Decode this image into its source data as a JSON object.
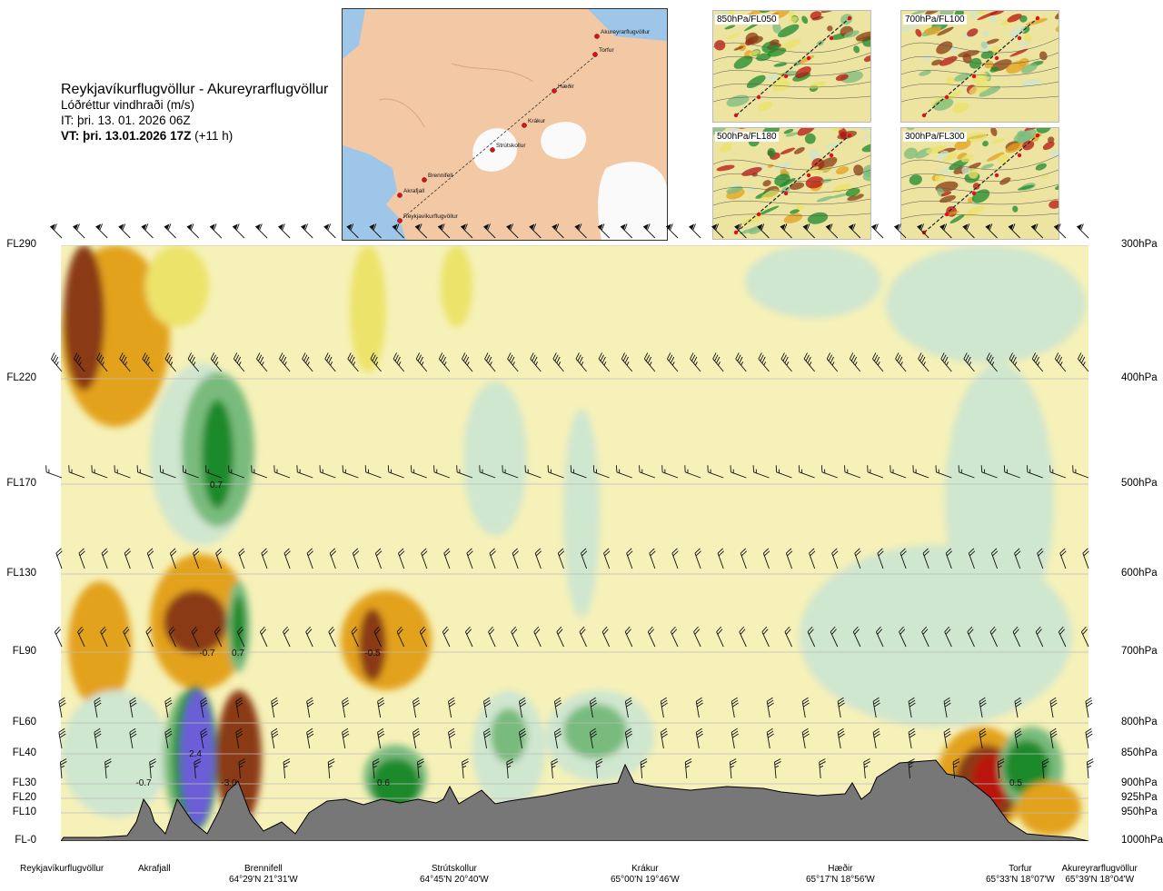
{
  "header": {
    "route": "Reykjavíkurflugvöllur - Akureyrarflugvöllur",
    "product": "Lóðréttur vindhraði (m/s)",
    "issue_time": "IT: þri. 13. 01. 2026 06Z",
    "valid_time_bold": "VT: þri. 13.01.2026 17Z",
    "valid_offset": "(+11 h)"
  },
  "route_map": {
    "waypoints": [
      "Akureyrarflugvöllur",
      "Torfur",
      "Hæðir",
      "Krákur",
      "Strútskollur",
      "Brennifell",
      "Akrafjall",
      "Reykjavíkurflugvöllur"
    ],
    "route_color": "#e0101a"
  },
  "thumbnails": [
    {
      "label": "850hPa/FL050"
    },
    {
      "label": "700hPa/FL100"
    },
    {
      "label": "500hPa/FL180"
    },
    {
      "label": "300hPa/FL300"
    }
  ],
  "levels": [
    {
      "fl": "FL290",
      "hpa": "300hPa"
    },
    {
      "fl": "FL220",
      "hpa": "400hPa"
    },
    {
      "fl": "FL170",
      "hpa": "500hPa"
    },
    {
      "fl": "FL130",
      "hpa": "600hPa"
    },
    {
      "fl": "FL90",
      "hpa": "700hPa"
    },
    {
      "fl": "FL60",
      "hpa": "800hPa"
    },
    {
      "fl": "FL40",
      "hpa": "850hPa"
    },
    {
      "fl": "FL30",
      "hpa": "900hPa"
    },
    {
      "fl": "FL20",
      "hpa": "925hPa"
    },
    {
      "fl": "FL10",
      "hpa": "950hPa"
    },
    {
      "fl": "FL-0",
      "hpa": "1000hPa"
    }
  ],
  "locations": [
    {
      "name": "Reykjavíkurflugvöllur",
      "coord": ""
    },
    {
      "name": "Akrafjall",
      "coord": ""
    },
    {
      "name": "Brennifell",
      "coord": "64°29'N 21°31'W"
    },
    {
      "name": "Strútskollur",
      "coord": "64°45'N 20°40'W"
    },
    {
      "name": "Krákur",
      "coord": "65°00'N 19°46'W"
    },
    {
      "name": "Hæðir",
      "coord": "65°17'N 18°56'W"
    },
    {
      "name": "Torfur",
      "coord": "65°33'N 18°07'W"
    },
    {
      "name": "Akureyrarflugvöllur",
      "coord": "65°39'N 18°04'W"
    }
  ],
  "chart_data": {
    "type": "heatmap",
    "title": "Lóðréttur vindhraði (m/s)",
    "x_axis": "route position (waypoints)",
    "y_axis_left": [
      "FL290",
      "FL220",
      "FL170",
      "FL130",
      "FL90",
      "FL60",
      "FL40",
      "FL30",
      "FL20",
      "FL10",
      "FL-0"
    ],
    "y_axis_right": [
      "300hPa",
      "400hPa",
      "500hPa",
      "600hPa",
      "700hPa",
      "800hPa",
      "850hPa",
      "900hPa",
      "925hPa",
      "950hPa",
      "1000hPa"
    ],
    "contour_labels": [
      {
        "text": "0.7",
        "near": "Brennifell",
        "level": "FL170"
      },
      {
        "text": "-0.7",
        "near": "Brennifell",
        "level": "FL90"
      },
      {
        "text": "0.7",
        "near": "Brennifell",
        "level": "FL90"
      },
      {
        "text": "-0.5",
        "near": "Strútskollur",
        "level": "FL90"
      },
      {
        "text": "2.4",
        "near": "Akrafjall",
        "level": "FL40"
      },
      {
        "text": "-0.7",
        "near": "Akrafjall",
        "level": "FL30"
      },
      {
        "text": "-3.0",
        "near": "Brennifell",
        "level": "FL30"
      },
      {
        "text": "0.6",
        "near": "Strútskollur",
        "level": "FL30"
      },
      {
        "text": "0.5",
        "near": "Torfur",
        "level": "FL30"
      }
    ],
    "color_scale": {
      "strong_down": "#b8120f",
      "down": "#8a3b12",
      "weak_down": "#e3a21c",
      "slight_down": "#ece36a",
      "neutral": "#f6f1b8",
      "slight_up": "#cfe6cf",
      "weak_up": "#79bb7d",
      "up": "#1c8a2c",
      "strong_up": "#6b5fd6"
    },
    "terrain_color": "#777777"
  }
}
